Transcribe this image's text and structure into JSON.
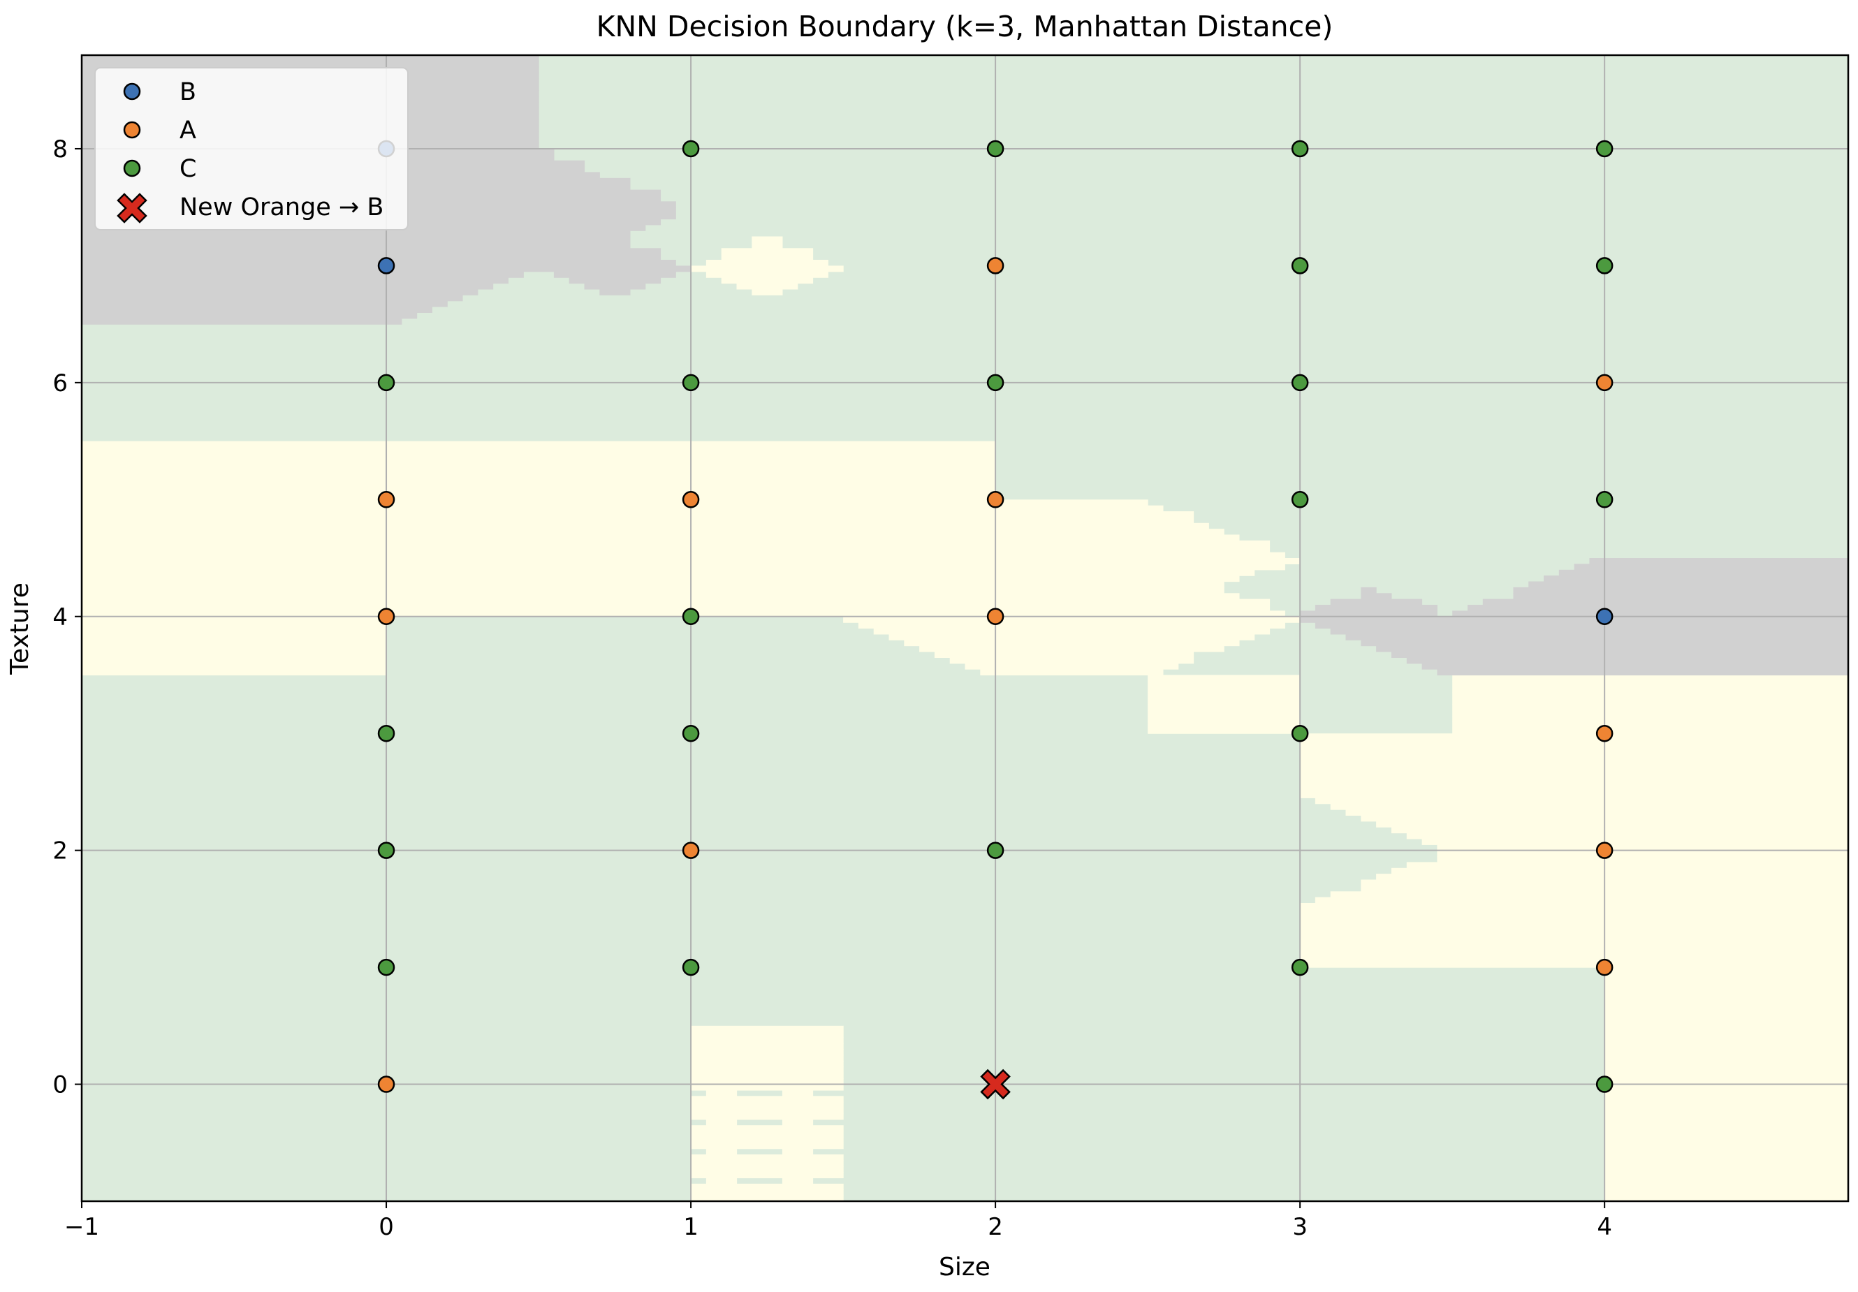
{
  "chart_data": {
    "type": "scatter",
    "title": "KNN Decision Boundary (k=3, Manhattan Distance)",
    "xlabel": "Size",
    "ylabel": "Texture",
    "xlim": [
      -1,
      4.8
    ],
    "ylim": [
      -1,
      8.8
    ],
    "xticks": [
      "−1",
      "0",
      "1",
      "2",
      "3",
      "4"
    ],
    "yticks": [
      "0",
      "2",
      "4",
      "6",
      "8"
    ],
    "grid": true,
    "legend_position": "top-left",
    "region_colors": {
      "A": "#fffde6",
      "B": "#d1d1d1",
      "C": "#dcebdc",
      "boundary": "#eaa9cf"
    },
    "series": [
      {
        "name": "B",
        "color": "#3d72b4",
        "marker": "circle",
        "points": [
          [
            0,
            7
          ],
          [
            4,
            4
          ],
          [
            0,
            8
          ]
        ]
      },
      {
        "name": "A",
        "color": "#ee8433",
        "marker": "circle",
        "points": [
          [
            0,
            5
          ],
          [
            0,
            4
          ],
          [
            0,
            0
          ],
          [
            1,
            5
          ],
          [
            1,
            2
          ],
          [
            2,
            7
          ],
          [
            2,
            5
          ],
          [
            2,
            4
          ],
          [
            4,
            6
          ],
          [
            4,
            3
          ],
          [
            4,
            2
          ],
          [
            4,
            1
          ]
        ]
      },
      {
        "name": "C",
        "color": "#4c9a3f",
        "marker": "circle",
        "points": [
          [
            0,
            6
          ],
          [
            0,
            3
          ],
          [
            0,
            2
          ],
          [
            0,
            1
          ],
          [
            1,
            8
          ],
          [
            1,
            6
          ],
          [
            1,
            4
          ],
          [
            1,
            3
          ],
          [
            1,
            1
          ],
          [
            2,
            8
          ],
          [
            2,
            6
          ],
          [
            2,
            2
          ],
          [
            3,
            8
          ],
          [
            3,
            7
          ],
          [
            3,
            6
          ],
          [
            3,
            5
          ],
          [
            3,
            3
          ],
          [
            3,
            1
          ],
          [
            4,
            8
          ],
          [
            4,
            7
          ],
          [
            4,
            5
          ],
          [
            4,
            0
          ]
        ]
      },
      {
        "name": "New Orange → B",
        "color": "#d62a1e",
        "marker": "x",
        "points": [
          [
            2,
            0
          ]
        ]
      }
    ]
  }
}
